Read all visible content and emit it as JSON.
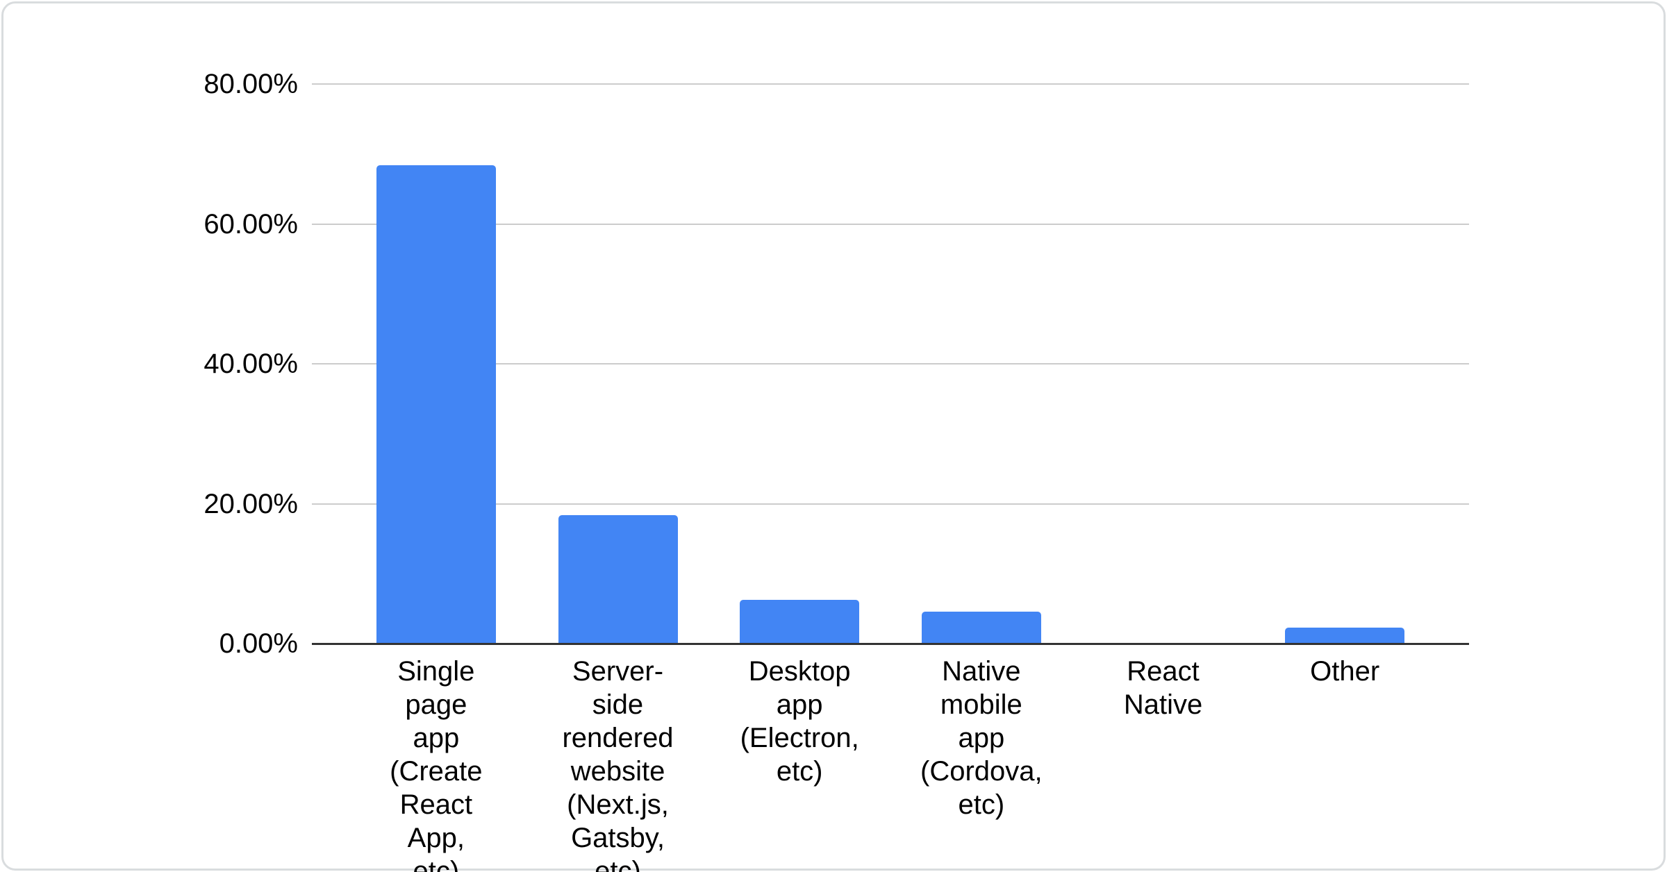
{
  "chart_data": {
    "type": "bar",
    "title": "",
    "xlabel": "",
    "ylabel": "",
    "categories": [
      "Single page app (Create React App, etc)",
      "Server-side rendered website (Next.js, Gatsby, etc)",
      "Desktop app (Electron, etc)",
      "Native mobile app (Cordova, etc)",
      "React Native",
      "Other"
    ],
    "category_tick_lines": [
      "Single page\napp (Create\nReact App,\netc)",
      "Server-side\nrendered\nwebsite\n(Next.js,\nGatsby, etc)",
      "Desktop\napp\n(Electron,\netc)",
      "Native\nmobile app\n(Cordova,\netc)",
      "React\nNative",
      "Other"
    ],
    "values": [
      68.4,
      18.4,
      6.3,
      4.6,
      0,
      2.3
    ],
    "value_unit": "%",
    "ylim": [
      0,
      80
    ],
    "yticks": [
      "80.00%",
      "60.00%",
      "40.00%",
      "20.00%",
      "0.00%"
    ],
    "grid": true,
    "legend": "none",
    "colors": {
      "bar": "#4285f4",
      "gridline": "#cccccc",
      "baseline": "#333333",
      "axis_text": "#000000",
      "card_border": "#d9dcde",
      "background": "#ffffff"
    }
  }
}
